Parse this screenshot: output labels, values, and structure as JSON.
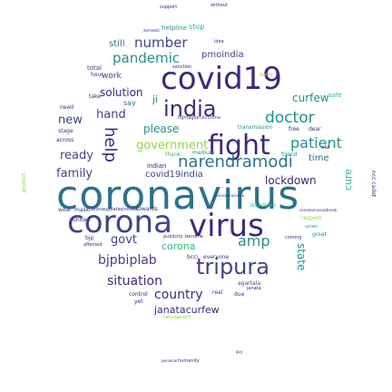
{
  "word_cloud": {
    "palette": {
      "navy": "#3b2a7a",
      "indigo": "#414487",
      "blue": "#2c728e",
      "teal": "#21918c",
      "green": "#35b779",
      "lime": "#90d743",
      "yellow": "#c8e020",
      "gray": "#8a8fa0"
    },
    "words": [
      {
        "text": "coronavirus",
        "size": 44,
        "color": "#2c728e"
      },
      {
        "text": "corona",
        "size": 34,
        "color": "#414487"
      },
      {
        "text": "virus",
        "size": 34,
        "color": "#3b2a7a"
      },
      {
        "text": "covid19",
        "size": 34,
        "color": "#3b2a7a"
      },
      {
        "text": "fight",
        "size": 30,
        "color": "#3b2a7a"
      },
      {
        "text": "india",
        "size": 24,
        "color": "#3b2a7a"
      },
      {
        "text": "tripura",
        "size": 24,
        "color": "#414487"
      },
      {
        "text": "narendramodi",
        "size": 18,
        "color": "#2c728e"
      },
      {
        "text": "doctor",
        "size": 17,
        "color": "#21918c"
      },
      {
        "text": "patient",
        "size": 16,
        "color": "#21918c"
      },
      {
        "text": "government",
        "size": 13,
        "color": "#90d743"
      },
      {
        "text": "pandemic",
        "size": 15,
        "color": "#21918c"
      },
      {
        "text": "number",
        "size": 15,
        "color": "#414487"
      },
      {
        "text": "country",
        "size": 14,
        "color": "#3b2a7a"
      },
      {
        "text": "situation",
        "size": 14,
        "color": "#3b2a7a"
      },
      {
        "text": "bjpbiplab",
        "size": 14,
        "color": "#414487"
      },
      {
        "text": "govt",
        "size": 13,
        "color": "#414487"
      },
      {
        "text": "family",
        "size": 13,
        "color": "#414487"
      },
      {
        "text": "ready",
        "size": 13,
        "color": "#414487"
      },
      {
        "text": "solution",
        "size": 12,
        "color": "#3b2a7a"
      },
      {
        "text": "new",
        "size": 13,
        "color": "#414487"
      },
      {
        "text": "hand",
        "size": 13,
        "color": "#414487"
      },
      {
        "text": "lockdown",
        "size": 12,
        "color": "#3b2a7a"
      },
      {
        "text": "amp",
        "size": 16,
        "color": "#21918c"
      },
      {
        "text": "curfew",
        "size": 12,
        "color": "#21918c"
      },
      {
        "text": "please",
        "size": 12,
        "color": "#21918c"
      },
      {
        "text": "janatacurfew",
        "size": 11,
        "color": "#3b2a7a"
      },
      {
        "text": "corona",
        "size": 11,
        "color": "#35b779"
      },
      {
        "text": "covid19india",
        "size": 10,
        "color": "#414487"
      },
      {
        "text": "pmoindia",
        "size": 10,
        "color": "#414487"
      },
      {
        "text": "time",
        "size": 10,
        "color": "#2c728e"
      },
      {
        "text": "cure",
        "size": 11,
        "color": "#35b779"
      },
      {
        "text": "still",
        "size": 10,
        "color": "#2c728e"
      },
      {
        "text": "stop",
        "size": 8,
        "color": "#35b779"
      },
      {
        "text": "helpline",
        "size": 7,
        "color": "#21918c"
      },
      {
        "text": "help",
        "size": 18,
        "color": "#3b2a7a"
      },
      {
        "text": "say",
        "size": 8,
        "color": "#2c728e"
      },
      {
        "text": "ji",
        "size": 11,
        "color": "#21918c"
      },
      {
        "text": "indian",
        "size": 7,
        "color": "#3b2a7a"
      },
      {
        "text": "medium",
        "size": 6,
        "color": "#21918c"
      },
      {
        "text": "thank",
        "size": 6,
        "color": "#35b779"
      },
      {
        "text": "friend",
        "size": 6,
        "color": "#21918c"
      },
      {
        "text": "transmission",
        "size": 6,
        "color": "#21918c"
      },
      {
        "text": "free",
        "size": 6,
        "color": "#3b2a7a"
      },
      {
        "text": "dear",
        "size": 6,
        "color": "#3b2a7a"
      },
      {
        "text": "safe",
        "size": 7,
        "color": "#35b779"
      },
      {
        "text": "towards",
        "size": 6,
        "color": "#3b2a7a"
      },
      {
        "text": "wear",
        "size": 6,
        "color": "#414487"
      },
      {
        "text": "mask",
        "size": 6,
        "color": "#3b2a7a"
      },
      {
        "text": "coronaupdatesinindia",
        "size": 5,
        "color": "#3b2a7a"
      },
      {
        "text": "become",
        "size": 5,
        "color": "#3b2a7a"
      },
      {
        "text": "publicity",
        "size": 5,
        "color": "#3b2a7a"
      },
      {
        "text": "respect",
        "size": 6,
        "color": "#90d743"
      },
      {
        "text": "great",
        "size": 6,
        "color": "#21918c"
      },
      {
        "text": "union",
        "size": 5,
        "color": "#21918c"
      },
      {
        "text": "coming",
        "size": 5,
        "color": "#3b2a7a"
      },
      {
        "text": "bcci",
        "size": 6,
        "color": "#3b2a7a"
      },
      {
        "text": "everyone",
        "size": 6,
        "color": "#3b2a7a"
      },
      {
        "text": "agartala",
        "size": 6,
        "color": "#414487"
      },
      {
        "text": "real",
        "size": 6,
        "color": "#3b2a7a"
      },
      {
        "text": "due",
        "size": 6,
        "color": "#3b2a7a"
      },
      {
        "text": "janata",
        "size": 5,
        "color": "#3b2a7a"
      },
      {
        "text": "control",
        "size": 6,
        "color": "#3b2a7a"
      },
      {
        "text": "yet",
        "size": 6,
        "color": "#3b2a7a"
      },
      {
        "text": "support",
        "size": 5,
        "color": "#3b2a7a"
      },
      {
        "text": "without",
        "size": 5,
        "color": "#3b2a7a"
      },
      {
        "text": "humanity",
        "size": 5,
        "color": "#3b2a7a"
      },
      {
        "text": "personal",
        "size": 4,
        "color": "#3b2a7a"
      },
      {
        "text": "guy",
        "size": 4,
        "color": "#3b2a7a"
      },
      {
        "text": "idea",
        "size": 5,
        "color": "#3b2a7a"
      },
      {
        "text": "total",
        "size": 7,
        "color": "#414487"
      },
      {
        "text": "need",
        "size": 6,
        "color": "#3b2a7a"
      },
      {
        "text": "hour",
        "size": 6,
        "color": "#3b2a7a"
      },
      {
        "text": "take",
        "size": 6,
        "color": "#3b2a7a"
      },
      {
        "text": "across",
        "size": 6,
        "color": "#3b2a7a"
      },
      {
        "text": "stage",
        "size": 6,
        "color": "#3b2a7a"
      },
      {
        "text": "sanction",
        "size": 5,
        "color": "#3b2a7a"
      },
      {
        "text": "soon",
        "size": 6,
        "color": "#90d743"
      },
      {
        "text": "united",
        "size": 6,
        "color": "#3b2a7a"
      },
      {
        "text": "affected",
        "size": 5,
        "color": "#3b2a7a"
      },
      {
        "text": "bjp",
        "size": 6,
        "color": "#3b2a7a"
      },
      {
        "text": "domestic",
        "size": 4,
        "color": "#3b2a7a"
      },
      {
        "text": "ncc cadet",
        "size": 6,
        "color": "#3b2a7a"
      },
      {
        "text": "protect",
        "size": 6,
        "color": "#90d743"
      },
      {
        "text": "work",
        "size": 9,
        "color": "#414487"
      },
      {
        "text": "state",
        "size": 12,
        "color": "#21918c"
      },
      {
        "text": "lockdown",
        "size": 6,
        "color": "#35b779"
      },
      {
        "text": "fightagainstcorona",
        "size": 5,
        "color": "#414487"
      },
      {
        "text": "via",
        "size": 6,
        "color": "#3b2a7a"
      },
      {
        "text": "rahulgandhi",
        "size": 5,
        "color": "#90d743"
      },
      {
        "text": "coronavirusoutbreak",
        "size": 4,
        "color": "#3b2a7a"
      },
      {
        "text": "coronavirusindia",
        "size": 4,
        "color": "#3b2a7a"
      }
    ]
  }
}
